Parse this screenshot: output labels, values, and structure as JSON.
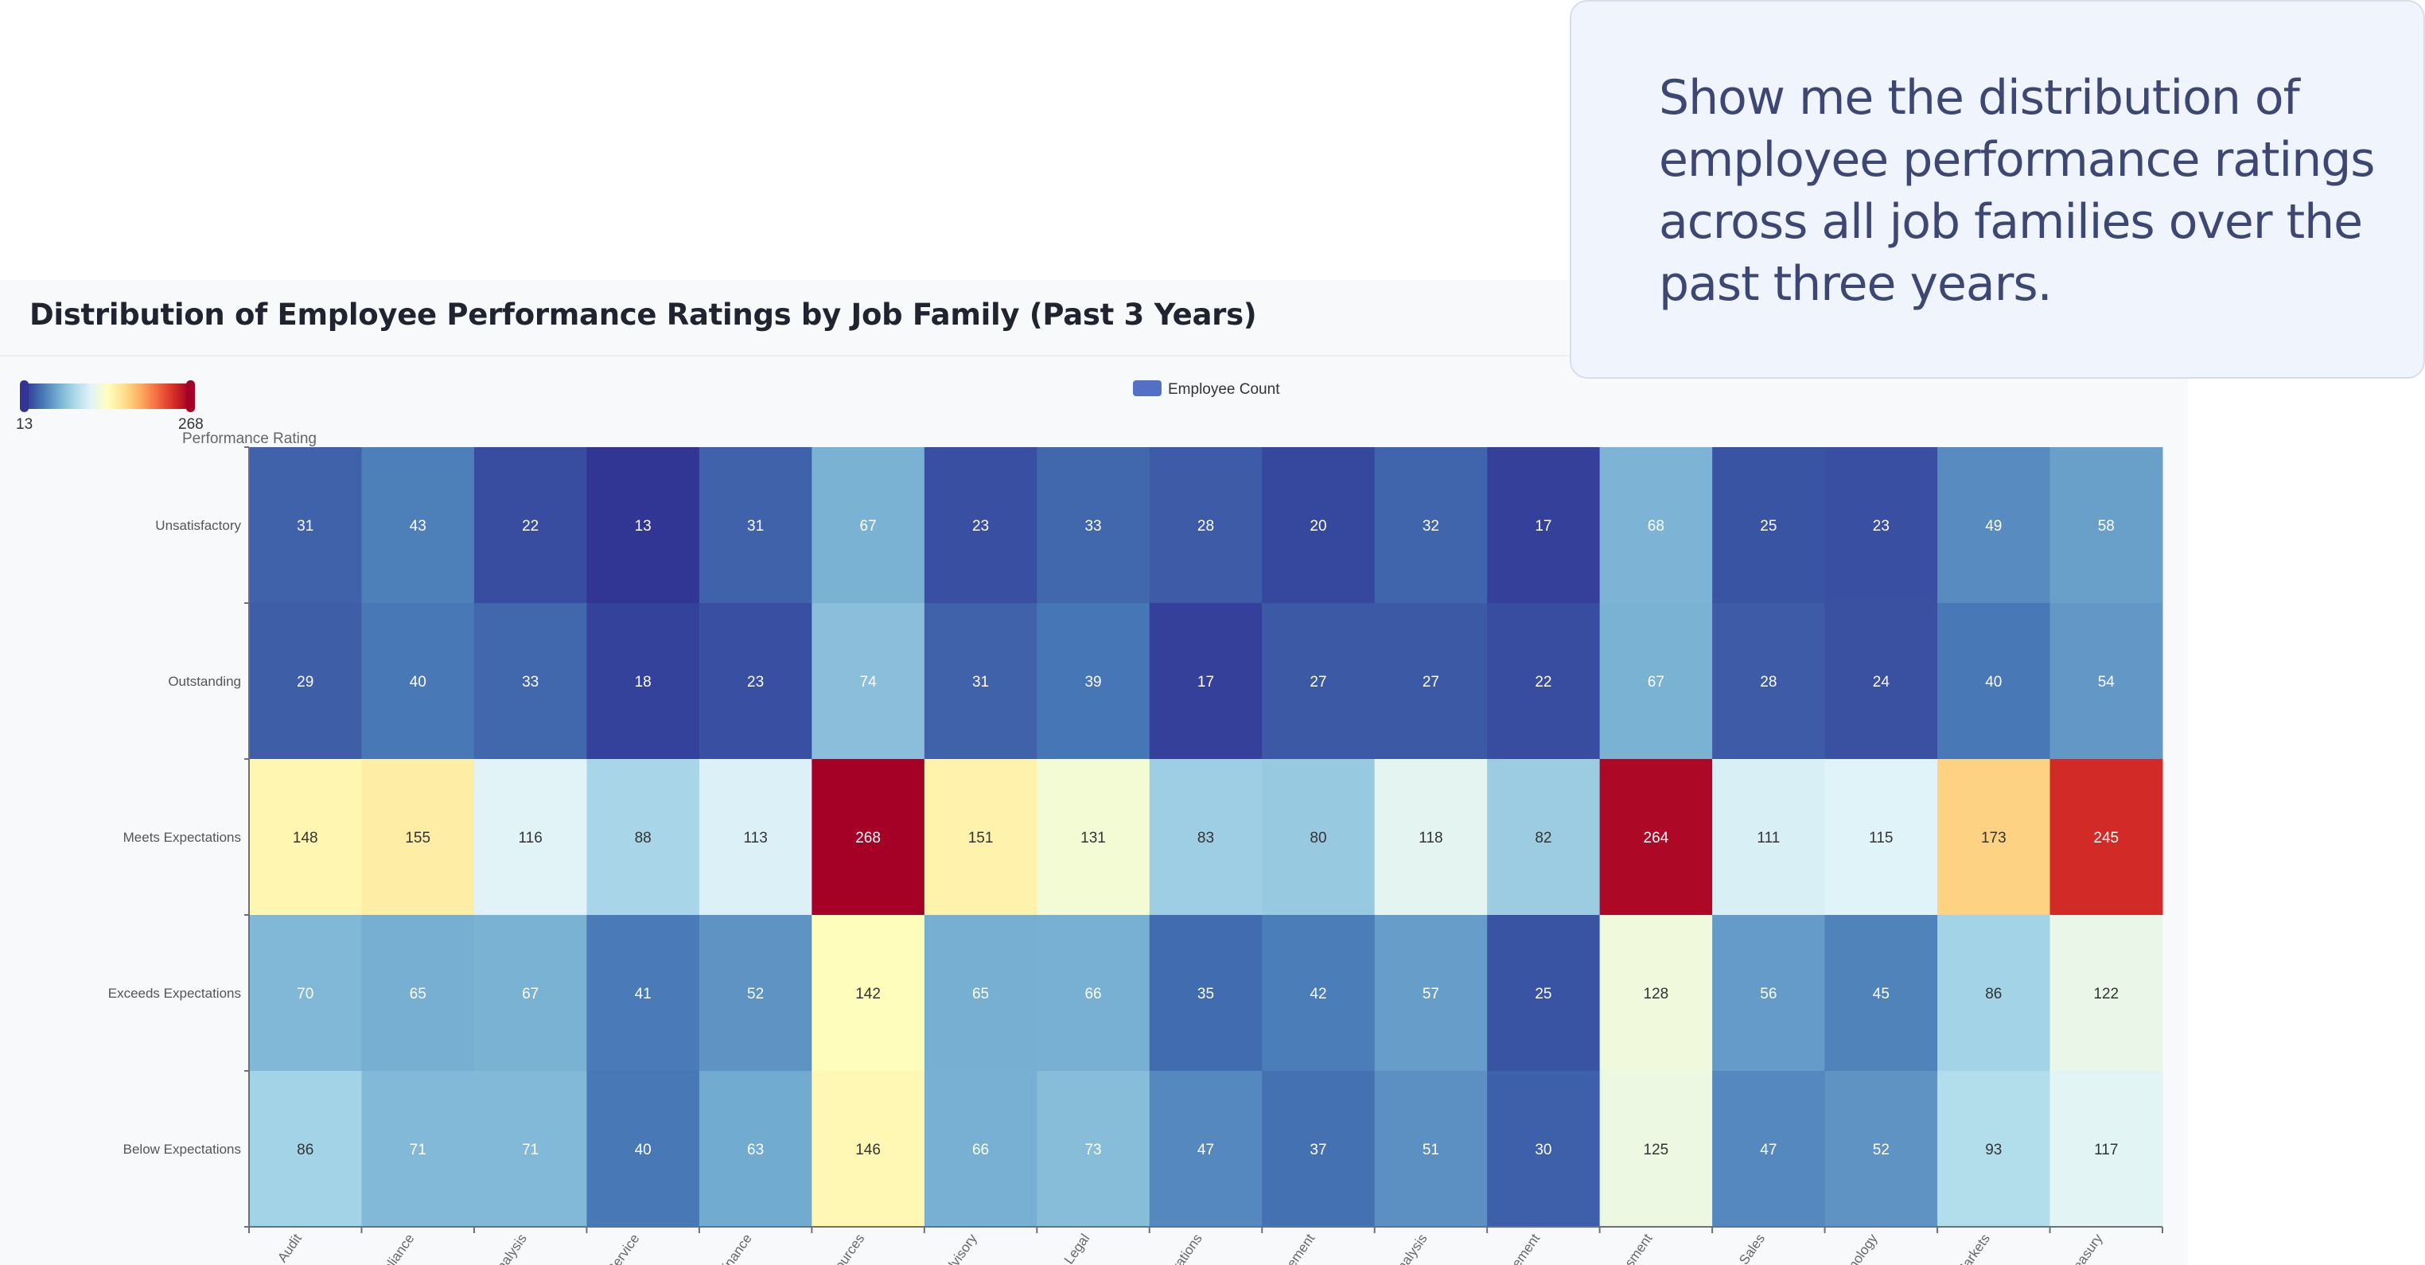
{
  "chat": {
    "message": "Show me the distribution of employee performance ratings across all job families over the past three years."
  },
  "chart_data": {
    "type": "heatmap",
    "title": "Distribution of Employee Performance Ratings by Job Family (Past 3 Years)",
    "ylabel": "Performance Rating",
    "legend": {
      "label": "Employee Count",
      "placement": "top-center",
      "color": "#5470c6"
    },
    "visual_map": {
      "min": 13,
      "max": 268,
      "min_label": "13",
      "max_label": "268",
      "colors": [
        "#313695",
        "#4575b4",
        "#74add1",
        "#abd9e9",
        "#e0f3f8",
        "#ffffbf",
        "#fee090",
        "#fdae61",
        "#f46d43",
        "#d73027",
        "#a50026"
      ]
    },
    "y_categories": [
      "Unsatisfactory",
      "Outstanding",
      "Meets Expectations",
      "Exceeds Expectations",
      "Below Expectations"
    ],
    "x_categories_visible": [
      "Audit",
      "pliance",
      "Analysis",
      "Service",
      "Finance",
      "sources",
      "dvisory",
      "Legal",
      "rations",
      "gement",
      "Analysis",
      "gement",
      "ssment",
      "Sales",
      "nology",
      "Markets",
      "reasury"
    ],
    "values": [
      [
        31,
        43,
        22,
        13,
        31,
        67,
        23,
        33,
        28,
        20,
        32,
        17,
        68,
        25,
        23,
        49,
        58
      ],
      [
        29,
        40,
        33,
        18,
        23,
        74,
        31,
        39,
        17,
        27,
        27,
        22,
        67,
        28,
        24,
        40,
        54
      ],
      [
        148,
        155,
        116,
        88,
        113,
        268,
        151,
        131,
        83,
        80,
        118,
        82,
        264,
        111,
        115,
        173,
        245
      ],
      [
        70,
        65,
        67,
        41,
        52,
        142,
        65,
        66,
        35,
        42,
        57,
        25,
        128,
        56,
        45,
        86,
        122
      ],
      [
        86,
        71,
        71,
        40,
        63,
        146,
        66,
        73,
        47,
        37,
        51,
        30,
        125,
        47,
        52,
        93,
        117
      ]
    ]
  }
}
